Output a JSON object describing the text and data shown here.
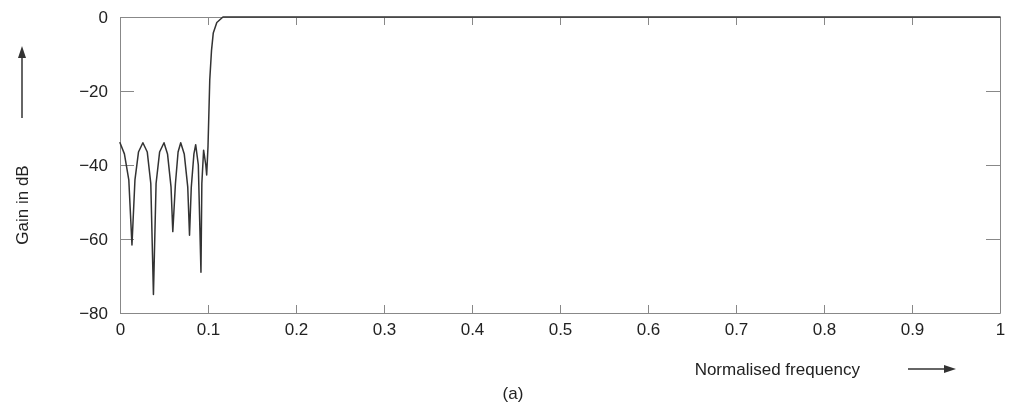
{
  "chart_data": {
    "type": "line",
    "xlabel": "Normalised frequency",
    "ylabel": "Gain in dB",
    "annotations": [
      "(a)"
    ],
    "xlim": [
      0,
      1
    ],
    "ylim": [
      -80,
      0
    ],
    "xticks": [
      0,
      0.1,
      0.2,
      0.3,
      0.4,
      0.5,
      0.6,
      0.7,
      0.8,
      0.9,
      1
    ],
    "yticks": [
      -80,
      -60,
      -40,
      -20,
      0
    ],
    "grid": false,
    "marker": "none",
    "line_style": "solid",
    "series": [
      {
        "color": "#333333",
        "x": [
          0,
          0.005,
          0.01,
          0.0136,
          0.017,
          0.021,
          0.026,
          0.031,
          0.035,
          0.038,
          0.041,
          0.045,
          0.05,
          0.054,
          0.058,
          0.06,
          0.063,
          0.066,
          0.069,
          0.073,
          0.077,
          0.079,
          0.081,
          0.084,
          0.086,
          0.089,
          0.092,
          0.093,
          0.095,
          0.0975,
          0.0985,
          0.1,
          0.102,
          0.104,
          0.106,
          0.11,
          0.117,
          1
        ],
        "values": [
          -34,
          -37,
          -44,
          -61.6,
          -44,
          -36.5,
          -34,
          -36.5,
          -45,
          -75,
          -45,
          -36.5,
          -34,
          -37,
          -46,
          -58,
          -45,
          -36.5,
          -34,
          -37,
          -46,
          -59,
          -46,
          -37,
          -34.5,
          -40,
          -69,
          -45,
          -36,
          -40,
          -42.7,
          -35,
          -17,
          -9,
          -4.3,
          -1.5,
          0,
          0
        ]
      }
    ]
  }
}
